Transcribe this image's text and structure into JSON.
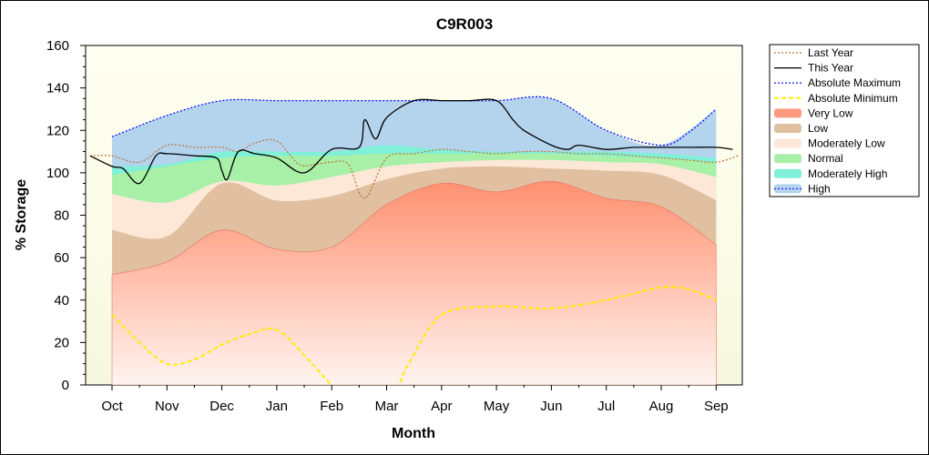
{
  "chart_data": {
    "type": "area",
    "title": "C9R003",
    "xlabel": "Month",
    "ylabel": "% Storage",
    "ylim": [
      0,
      160
    ],
    "yticks": [
      0,
      20,
      40,
      60,
      80,
      100,
      120,
      140,
      160
    ],
    "categories": [
      "Oct",
      "Nov",
      "Dec",
      "Jan",
      "Feb",
      "Mar",
      "Apr",
      "May",
      "Jun",
      "Jul",
      "Aug",
      "Sep"
    ],
    "legend_position": "right",
    "bands": [
      {
        "name": "High",
        "color": "#b4d4ee",
        "lower": "Moderately High upper",
        "upper": [
          117,
          127,
          134,
          134,
          134,
          134,
          134,
          134,
          135,
          120,
          113,
          130
        ]
      },
      {
        "name": "Moderately High",
        "color": "#80f0d8",
        "upper": [
          103,
          104,
          110,
          110,
          110,
          113,
          111,
          110,
          110,
          110,
          109,
          107
        ]
      },
      {
        "name": "Normal",
        "color": "#a8f0a8",
        "upper": [
          99,
          103,
          107,
          108,
          108,
          109,
          109,
          109,
          109,
          108,
          107,
          105
        ]
      },
      {
        "name": "Moderately Low",
        "color": "#fde8d8",
        "upper": [
          90,
          86,
          96,
          94,
          98,
          103,
          105,
          106,
          106,
          105,
          104,
          98
        ]
      },
      {
        "name": "Low",
        "color": "#e0c0a0",
        "upper": [
          73,
          70,
          95,
          87,
          89,
          97,
          102,
          103,
          102,
          101,
          99,
          87
        ]
      },
      {
        "name": "Very Low",
        "color": "#ff9a80",
        "upper": [
          52,
          58,
          73,
          64,
          65,
          85,
          95,
          91,
          96,
          88,
          84,
          66
        ]
      }
    ],
    "series": [
      {
        "name": "Last Year",
        "color": "#c07030",
        "style": "dotted",
        "x": [
          -0.4,
          0.0,
          0.5,
          1.0,
          1.5,
          2.0,
          2.3,
          2.6,
          3.0,
          3.4,
          3.7,
          4.0,
          4.3,
          4.6,
          5.0,
          5.5,
          6.0,
          6.5,
          7.0,
          7.5,
          8.0,
          8.5,
          9.0,
          9.5,
          10.0,
          10.5,
          11.0,
          11.4
        ],
        "y": [
          108,
          108,
          105,
          113,
          112,
          112,
          110,
          114,
          115,
          104,
          104,
          105,
          104,
          88,
          107,
          109,
          111,
          110,
          109,
          110,
          110,
          109,
          109,
          108,
          107,
          106,
          105,
          108
        ]
      },
      {
        "name": "This Year",
        "color": "#000000",
        "style": "solid",
        "x": [
          -0.4,
          0.0,
          0.2,
          0.5,
          0.8,
          1.0,
          1.5,
          1.9,
          2.0,
          2.1,
          2.3,
          2.6,
          3.0,
          3.5,
          4.0,
          4.5,
          4.6,
          4.8,
          5.0,
          5.5,
          6.0,
          6.5,
          7.0,
          7.3,
          7.5,
          8.0,
          8.3,
          8.5,
          9.0,
          9.5,
          10.0,
          10.5,
          11.0,
          11.3
        ],
        "y": [
          108,
          103,
          102,
          95,
          108,
          109,
          108,
          107,
          101,
          97,
          110,
          109,
          107,
          100,
          111,
          112,
          125,
          116,
          126,
          134,
          134,
          134,
          134,
          125,
          120,
          113,
          111,
          113,
          111,
          112,
          112,
          112,
          112,
          111
        ]
      },
      {
        "name": "Absolute Maximum",
        "color": "#0000ff",
        "style": "dotted",
        "x": [
          0,
          1,
          2,
          3,
          4,
          5,
          6,
          7,
          8,
          9,
          10,
          10.5,
          11
        ],
        "y": [
          117,
          127,
          134,
          134,
          134,
          134,
          134,
          134,
          135,
          120,
          113,
          119,
          130
        ]
      },
      {
        "name": "Absolute Minimum",
        "color": "#ffee00",
        "style": "dashed",
        "x": [
          0,
          0.5,
          1.0,
          1.5,
          2.0,
          2.5,
          3.0,
          3.5,
          4.0,
          4.2,
          5.1,
          5.4,
          6.0,
          7.0,
          8.0,
          9.0,
          10.0,
          10.5,
          11.0
        ],
        "y": [
          33,
          20,
          10,
          12,
          19,
          24,
          26,
          14,
          0,
          -2,
          -2,
          10,
          33,
          37,
          36,
          40,
          46,
          45,
          40
        ]
      }
    ]
  }
}
